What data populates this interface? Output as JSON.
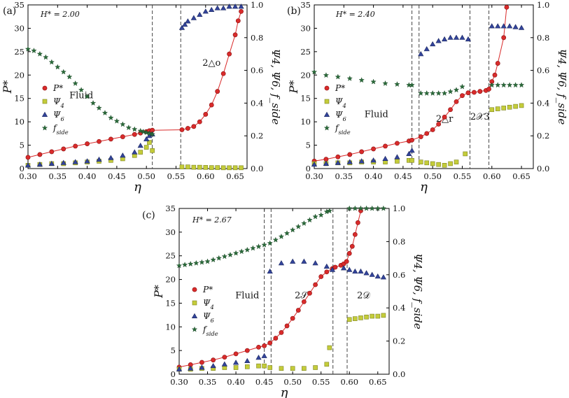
{
  "figure_labels": {
    "a": "(a)",
    "b": "(b)",
    "c": "(c)"
  },
  "colors": {
    "pressure": "#d92b2b",
    "psi4": "#c4cc3a",
    "psi6": "#33449b",
    "fside": "#2a6b3a"
  },
  "chart_data": [
    {
      "id": "a",
      "type": "scatter",
      "label": "(a)",
      "annotation": "H* = 2.00",
      "xlabel": "η",
      "ylabel_left": "P*",
      "ylabel_right": "Ψ4, Ψ6, f_side",
      "xlim": [
        0.3,
        0.67
      ],
      "ylim_left": [
        0,
        35
      ],
      "ylim_right": [
        0,
        1.0
      ],
      "x_ticks": [
        "0.30",
        "0.35",
        "0.40",
        "0.45",
        "0.50",
        "0.55",
        "0.60",
        "0.65"
      ],
      "y_ticks_left": [
        "0",
        "5",
        "10",
        "15",
        "20",
        "25",
        "30",
        "35"
      ],
      "y_ticks_right": [
        "0.0",
        "0.2",
        "0.4",
        "0.6",
        "0.8",
        "1.0"
      ],
      "phase_lines": [
        0.51,
        0.558
      ],
      "phase_labels": [
        "Fluid",
        "2△o"
      ],
      "legend": [
        "P*",
        "Ψ4",
        "Ψ6",
        "f_side"
      ],
      "series": [
        {
          "name": "P*",
          "axis": "left",
          "marker": "circle",
          "line": true,
          "x": [
            0.3,
            0.32,
            0.34,
            0.36,
            0.38,
            0.4,
            0.42,
            0.44,
            0.46,
            0.48,
            0.49,
            0.5,
            0.505,
            0.51,
            0.56,
            0.57,
            0.58,
            0.59,
            0.6,
            0.61,
            0.62,
            0.63,
            0.64,
            0.65,
            0.655,
            0.66
          ],
          "y": [
            2.4,
            3.0,
            3.6,
            4.2,
            4.8,
            5.3,
            5.8,
            6.3,
            6.8,
            7.3,
            7.6,
            7.9,
            8.1,
            8.2,
            8.3,
            8.6,
            9.0,
            10.0,
            11.6,
            13.6,
            16.5,
            20.3,
            24.5,
            28.6,
            31.6,
            33.6
          ]
        },
        {
          "name": "Ψ4",
          "axis": "right",
          "marker": "square",
          "line": false,
          "x": [
            0.3,
            0.32,
            0.34,
            0.36,
            0.38,
            0.4,
            0.42,
            0.44,
            0.46,
            0.48,
            0.49,
            0.5,
            0.505,
            0.51,
            0.56,
            0.57,
            0.58,
            0.59,
            0.6,
            0.61,
            0.62,
            0.63,
            0.64,
            0.65,
            0.66
          ],
          "y": [
            0.02,
            0.025,
            0.03,
            0.03,
            0.035,
            0.04,
            0.045,
            0.05,
            0.06,
            0.08,
            0.1,
            0.13,
            0.16,
            0.11,
            0.01,
            0.01,
            0.008,
            0.008,
            0.007,
            0.006,
            0.006,
            0.005,
            0.005,
            0.005,
            0.005
          ]
        },
        {
          "name": "Ψ6",
          "axis": "right",
          "marker": "triangle",
          "line": false,
          "x": [
            0.3,
            0.32,
            0.34,
            0.36,
            0.38,
            0.4,
            0.42,
            0.44,
            0.46,
            0.48,
            0.49,
            0.5,
            0.505,
            0.51,
            0.56,
            0.565,
            0.57,
            0.58,
            0.59,
            0.6,
            0.61,
            0.62,
            0.63,
            0.64,
            0.65,
            0.66
          ],
          "y": [
            0.02,
            0.025,
            0.03,
            0.035,
            0.04,
            0.045,
            0.055,
            0.065,
            0.08,
            0.1,
            0.14,
            0.18,
            0.2,
            0.21,
            0.86,
            0.88,
            0.9,
            0.92,
            0.94,
            0.96,
            0.97,
            0.98,
            0.98,
            0.99,
            0.99,
            0.99
          ]
        },
        {
          "name": "f_side",
          "axis": "right",
          "marker": "star",
          "line": false,
          "x": [
            0.3,
            0.31,
            0.32,
            0.33,
            0.34,
            0.35,
            0.36,
            0.37,
            0.38,
            0.39,
            0.4,
            0.41,
            0.42,
            0.43,
            0.44,
            0.45,
            0.46,
            0.47,
            0.48,
            0.49,
            0.495,
            0.5,
            0.505,
            0.51
          ],
          "y": [
            0.73,
            0.72,
            0.7,
            0.68,
            0.65,
            0.62,
            0.59,
            0.56,
            0.52,
            0.48,
            0.44,
            0.4,
            0.37,
            0.34,
            0.31,
            0.29,
            0.27,
            0.25,
            0.24,
            0.23,
            0.225,
            0.22,
            0.215,
            0.21
          ]
        }
      ]
    },
    {
      "id": "b",
      "type": "scatter",
      "label": "(b)",
      "annotation": "H* = 2.40",
      "xlabel": "η",
      "ylabel_left": "P*",
      "ylabel_right": "Ψ4, Ψ6, f_side",
      "xlim": [
        0.3,
        0.67
      ],
      "ylim_left": [
        0,
        35
      ],
      "ylim_right": [
        0,
        1.0
      ],
      "x_ticks": [
        "0.30",
        "0.35",
        "0.40",
        "0.45",
        "0.50",
        "0.55",
        "0.60",
        "0.65"
      ],
      "y_ticks_left": [
        "0",
        "5",
        "10",
        "15",
        "20",
        "25",
        "30",
        "35"
      ],
      "y_ticks_right": [
        "0.0",
        "0.2",
        "0.4",
        "0.6",
        "0.8",
        "1.0"
      ],
      "phase_lines": [
        0.465,
        0.477,
        0.563,
        0.595
      ],
      "phase_labels": [
        "Fluid",
        "2△r",
        "2𝒳3"
      ],
      "legend": [
        "P*",
        "Ψ4",
        "Ψ6",
        "f_side"
      ],
      "series": [
        {
          "name": "P*",
          "axis": "left",
          "marker": "circle",
          "line": true,
          "x": [
            0.3,
            0.32,
            0.34,
            0.36,
            0.38,
            0.4,
            0.42,
            0.44,
            0.46,
            0.465,
            0.48,
            0.49,
            0.5,
            0.51,
            0.52,
            0.53,
            0.54,
            0.55,
            0.56,
            0.57,
            0.58,
            0.59,
            0.595,
            0.6,
            0.605,
            0.61,
            0.62,
            0.625
          ],
          "y": [
            1.6,
            2.0,
            2.5,
            3.0,
            3.6,
            4.2,
            4.8,
            5.4,
            5.9,
            6.1,
            6.8,
            7.5,
            8.3,
            9.5,
            11.0,
            12.6,
            14.3,
            15.6,
            16.2,
            16.3,
            16.5,
            16.7,
            17.0,
            18.6,
            20.0,
            22.5,
            28.0,
            34.5
          ]
        },
        {
          "name": "Ψ4",
          "axis": "right",
          "marker": "square",
          "line": false,
          "x": [
            0.3,
            0.32,
            0.34,
            0.36,
            0.38,
            0.4,
            0.42,
            0.44,
            0.46,
            0.465,
            0.48,
            0.49,
            0.5,
            0.51,
            0.52,
            0.53,
            0.54,
            0.555,
            0.6,
            0.61,
            0.62,
            0.63,
            0.64,
            0.65
          ],
          "y": [
            0.03,
            0.03,
            0.035,
            0.035,
            0.04,
            0.04,
            0.04,
            0.045,
            0.05,
            0.05,
            0.04,
            0.035,
            0.03,
            0.025,
            0.02,
            0.03,
            0.04,
            0.09,
            0.36,
            0.365,
            0.37,
            0.375,
            0.38,
            0.385
          ]
        },
        {
          "name": "Ψ6",
          "axis": "right",
          "marker": "triangle",
          "line": false,
          "x": [
            0.3,
            0.32,
            0.34,
            0.36,
            0.38,
            0.4,
            0.42,
            0.44,
            0.46,
            0.465,
            0.48,
            0.49,
            0.5,
            0.51,
            0.52,
            0.53,
            0.54,
            0.55,
            0.56,
            0.6,
            0.61,
            0.62,
            0.63,
            0.64,
            0.65
          ],
          "y": [
            0.025,
            0.03,
            0.035,
            0.04,
            0.045,
            0.05,
            0.06,
            0.07,
            0.09,
            0.11,
            0.7,
            0.73,
            0.76,
            0.78,
            0.79,
            0.8,
            0.8,
            0.8,
            0.79,
            0.87,
            0.87,
            0.87,
            0.87,
            0.865,
            0.86
          ]
        },
        {
          "name": "f_side",
          "axis": "right",
          "marker": "star",
          "line": false,
          "x": [
            0.3,
            0.32,
            0.34,
            0.36,
            0.38,
            0.4,
            0.42,
            0.44,
            0.46,
            0.465,
            0.48,
            0.49,
            0.5,
            0.51,
            0.52,
            0.53,
            0.54,
            0.55,
            0.6,
            0.61,
            0.62,
            0.63,
            0.64,
            0.65
          ],
          "y": [
            0.59,
            0.57,
            0.56,
            0.55,
            0.54,
            0.53,
            0.52,
            0.515,
            0.51,
            0.51,
            0.46,
            0.46,
            0.46,
            0.46,
            0.46,
            0.47,
            0.48,
            0.5,
            0.51,
            0.51,
            0.51,
            0.51,
            0.51,
            0.51
          ]
        }
      ]
    },
    {
      "id": "c",
      "type": "scatter",
      "label": "(c)",
      "annotation": "H* = 2.67",
      "xlabel": "η",
      "ylabel_left": "P*",
      "ylabel_right": "Ψ4, Ψ6, f_side",
      "xlim": [
        0.3,
        0.67
      ],
      "ylim_left": [
        0,
        35
      ],
      "ylim_right": [
        0,
        1.0
      ],
      "x_ticks": [
        "0.30",
        "0.35",
        "0.40",
        "0.45",
        "0.50",
        "0.55",
        "0.60",
        "0.65"
      ],
      "y_ticks_left": [
        "0",
        "5",
        "10",
        "15",
        "20",
        "25",
        "30",
        "35"
      ],
      "y_ticks_right": [
        "0.0",
        "0.2",
        "0.4",
        "0.6",
        "0.8",
        "1.0"
      ],
      "phase_lines": [
        0.45,
        0.462,
        0.571,
        0.596
      ],
      "phase_labels": [
        "Fluid",
        "2𝒮",
        "2𝒟"
      ],
      "legend": [
        "P*",
        "Ψ4",
        "Ψ6",
        "f_side"
      ],
      "series": [
        {
          "name": "P*",
          "axis": "left",
          "marker": "circle",
          "line": true,
          "x": [
            0.3,
            0.32,
            0.34,
            0.36,
            0.38,
            0.4,
            0.42,
            0.44,
            0.45,
            0.46,
            0.47,
            0.48,
            0.49,
            0.5,
            0.51,
            0.52,
            0.53,
            0.54,
            0.55,
            0.56,
            0.57,
            0.575,
            0.585,
            0.59,
            0.595,
            0.6,
            0.605,
            0.61,
            0.615,
            0.62
          ],
          "y": [
            1.5,
            2.0,
            2.5,
            3.0,
            3.6,
            4.3,
            5.0,
            5.7,
            6.0,
            6.6,
            7.6,
            8.8,
            10.2,
            11.8,
            13.5,
            15.3,
            17.1,
            18.9,
            20.6,
            21.6,
            22.3,
            22.6,
            23.0,
            23.3,
            23.8,
            25.5,
            27.0,
            29.5,
            32.0,
            34.5
          ]
        },
        {
          "name": "Ψ4",
          "axis": "right",
          "marker": "square",
          "line": false,
          "x": [
            0.3,
            0.32,
            0.34,
            0.36,
            0.38,
            0.4,
            0.42,
            0.44,
            0.45,
            0.46,
            0.48,
            0.5,
            0.52,
            0.54,
            0.56,
            0.565,
            0.6,
            0.61,
            0.62,
            0.63,
            0.64,
            0.65,
            0.66
          ],
          "y": [
            0.03,
            0.03,
            0.035,
            0.035,
            0.04,
            0.04,
            0.045,
            0.05,
            0.05,
            0.04,
            0.035,
            0.035,
            0.035,
            0.04,
            0.06,
            0.16,
            0.33,
            0.335,
            0.34,
            0.345,
            0.35,
            0.35,
            0.355
          ]
        },
        {
          "name": "Ψ6",
          "axis": "right",
          "marker": "triangle",
          "line": false,
          "x": [
            0.3,
            0.32,
            0.34,
            0.36,
            0.38,
            0.4,
            0.42,
            0.44,
            0.45,
            0.46,
            0.48,
            0.5,
            0.52,
            0.54,
            0.56,
            0.57,
            0.59,
            0.6,
            0.61,
            0.62,
            0.63,
            0.64,
            0.65,
            0.66
          ],
          "y": [
            0.03,
            0.035,
            0.04,
            0.05,
            0.06,
            0.07,
            0.08,
            0.1,
            0.11,
            0.62,
            0.67,
            0.68,
            0.68,
            0.67,
            0.65,
            0.63,
            0.64,
            0.63,
            0.62,
            0.62,
            0.61,
            0.6,
            0.59,
            0.585
          ]
        },
        {
          "name": "f_side",
          "axis": "right",
          "marker": "star",
          "line": false,
          "x": [
            0.3,
            0.31,
            0.32,
            0.33,
            0.34,
            0.35,
            0.36,
            0.37,
            0.38,
            0.39,
            0.4,
            0.41,
            0.42,
            0.43,
            0.44,
            0.45,
            0.46,
            0.47,
            0.48,
            0.49,
            0.5,
            0.51,
            0.52,
            0.53,
            0.54,
            0.55,
            0.56,
            0.565,
            0.6,
            0.61,
            0.62,
            0.63,
            0.64,
            0.65,
            0.66
          ],
          "y": [
            0.655,
            0.66,
            0.665,
            0.67,
            0.675,
            0.68,
            0.69,
            0.7,
            0.71,
            0.72,
            0.73,
            0.74,
            0.75,
            0.76,
            0.77,
            0.78,
            0.79,
            0.81,
            0.83,
            0.85,
            0.87,
            0.89,
            0.91,
            0.93,
            0.95,
            0.96,
            0.98,
            0.985,
            1.0,
            1.0,
            1.0,
            1.0,
            1.0,
            1.0,
            1.0
          ]
        }
      ]
    }
  ]
}
